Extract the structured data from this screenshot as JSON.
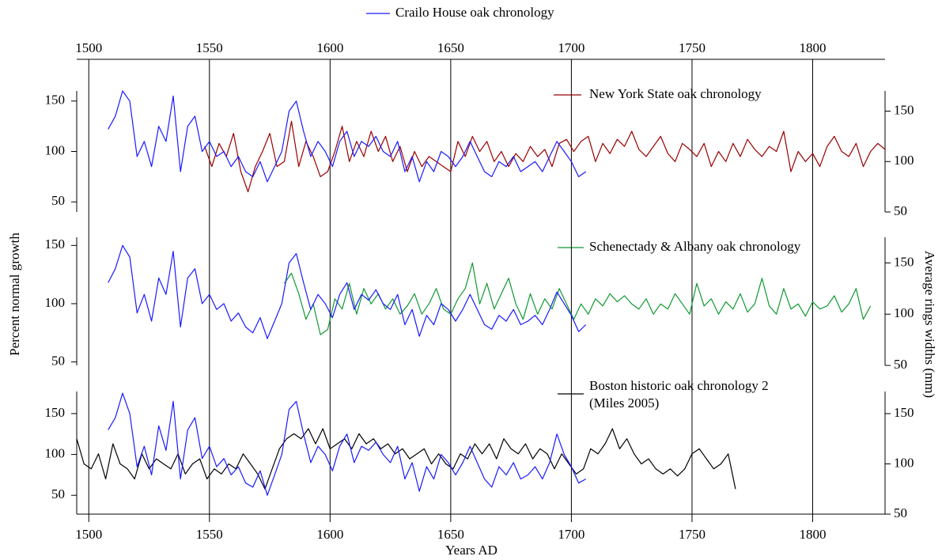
{
  "chart_data": [
    {
      "type": "line",
      "xlim": [
        1495,
        1830
      ],
      "xticks": [
        1500,
        1550,
        1600,
        1650,
        1700,
        1750,
        1800
      ],
      "ylim": [
        40,
        160
      ],
      "yticks": [
        50,
        100,
        150
      ],
      "y2lim": [
        50,
        170
      ],
      "y2ticks": [
        50,
        100,
        150
      ],
      "series": [
        {
          "name": "Crailo House oak chronology",
          "color": "#1a1aff",
          "x": [
            1508,
            1511,
            1514,
            1517,
            1520,
            1523,
            1526,
            1529,
            1532,
            1535,
            1538,
            1541,
            1544,
            1547,
            1550,
            1553,
            1556,
            1559,
            1562,
            1565,
            1568,
            1571,
            1574,
            1577,
            1580,
            1583,
            1586,
            1589,
            1592,
            1595,
            1598,
            1601,
            1604,
            1607,
            1610,
            1613,
            1616,
            1619,
            1622,
            1625,
            1628,
            1631,
            1634,
            1637,
            1640,
            1643,
            1646,
            1649,
            1652,
            1655,
            1658,
            1661,
            1664,
            1667,
            1670,
            1673,
            1676,
            1679,
            1682,
            1685,
            1688,
            1691,
            1694,
            1697,
            1700,
            1703,
            1706
          ],
          "values": [
            122,
            135,
            160,
            150,
            95,
            110,
            85,
            125,
            110,
            155,
            80,
            125,
            135,
            100,
            110,
            95,
            100,
            85,
            95,
            80,
            75,
            90,
            70,
            85,
            100,
            140,
            150,
            120,
            95,
            110,
            100,
            85,
            110,
            120,
            95,
            110,
            105,
            115,
            100,
            95,
            110,
            80,
            95,
            70,
            90,
            80,
            100,
            95,
            85,
            95,
            110,
            95,
            80,
            75,
            90,
            85,
            95,
            80,
            85,
            90,
            80,
            95,
            110,
            100,
            90,
            75,
            80
          ]
        },
        {
          "name": "New York State oak chronology",
          "color": "#990000",
          "axis": "y2",
          "x": [
            1548,
            1551,
            1554,
            1557,
            1560,
            1563,
            1566,
            1569,
            1572,
            1575,
            1578,
            1581,
            1584,
            1587,
            1590,
            1593,
            1596,
            1599,
            1602,
            1605,
            1608,
            1611,
            1614,
            1617,
            1620,
            1623,
            1626,
            1629,
            1632,
            1635,
            1638,
            1641,
            1644,
            1647,
            1650,
            1653,
            1656,
            1659,
            1662,
            1665,
            1668,
            1671,
            1674,
            1677,
            1680,
            1683,
            1686,
            1689,
            1692,
            1695,
            1698,
            1701,
            1704,
            1707,
            1710,
            1713,
            1716,
            1719,
            1722,
            1725,
            1728,
            1731,
            1734,
            1737,
            1740,
            1743,
            1746,
            1749,
            1752,
            1755,
            1758,
            1761,
            1764,
            1767,
            1770,
            1773,
            1776,
            1779,
            1782,
            1785,
            1788,
            1791,
            1794,
            1797,
            1800,
            1803,
            1806,
            1809,
            1812,
            1815,
            1818,
            1821,
            1824,
            1827,
            1830
          ],
          "values": [
            115,
            95,
            118,
            105,
            128,
            90,
            70,
            95,
            110,
            128,
            95,
            100,
            140,
            95,
            120,
            105,
            85,
            90,
            110,
            135,
            100,
            120,
            105,
            130,
            110,
            125,
            100,
            115,
            90,
            110,
            95,
            105,
            100,
            95,
            90,
            120,
            105,
            125,
            110,
            120,
            100,
            110,
            95,
            108,
            100,
            115,
            105,
            112,
            95,
            118,
            122,
            110,
            120,
            125,
            100,
            118,
            108,
            122,
            115,
            130,
            112,
            105,
            115,
            125,
            108,
            100,
            118,
            112,
            105,
            118,
            95,
            110,
            100,
            118,
            105,
            122,
            112,
            105,
            115,
            110,
            130,
            90,
            110,
            100,
            108,
            95,
            115,
            125,
            110,
            105,
            118,
            95,
            110,
            118,
            112
          ]
        }
      ]
    },
    {
      "type": "line",
      "xlim": [
        1495,
        1830
      ],
      "xticks": [
        1500,
        1550,
        1600,
        1650,
        1700,
        1750,
        1800
      ],
      "ylim": [
        47,
        157
      ],
      "yticks": [
        50,
        100,
        150
      ],
      "y2lim": [
        50,
        175
      ],
      "y2ticks": [
        50,
        100,
        150
      ],
      "ylabel": "Percent normal growth",
      "y2label": "Average rings widths (mm)",
      "series": [
        {
          "color": "#1a1aff",
          "x": [
            1508,
            1511,
            1514,
            1517,
            1520,
            1523,
            1526,
            1529,
            1532,
            1535,
            1538,
            1541,
            1544,
            1547,
            1550,
            1553,
            1556,
            1559,
            1562,
            1565,
            1568,
            1571,
            1574,
            1577,
            1580,
            1583,
            1586,
            1589,
            1592,
            1595,
            1598,
            1601,
            1604,
            1607,
            1610,
            1613,
            1616,
            1619,
            1622,
            1625,
            1628,
            1631,
            1634,
            1637,
            1640,
            1643,
            1646,
            1649,
            1652,
            1655,
            1658,
            1661,
            1664,
            1667,
            1670,
            1673,
            1676,
            1679,
            1682,
            1685,
            1688,
            1691,
            1694,
            1697,
            1700,
            1703,
            1706
          ],
          "values": [
            118,
            130,
            150,
            140,
            92,
            108,
            85,
            122,
            108,
            145,
            80,
            122,
            130,
            100,
            108,
            95,
            100,
            85,
            92,
            80,
            75,
            88,
            70,
            85,
            100,
            135,
            143,
            118,
            95,
            108,
            100,
            88,
            108,
            118,
            95,
            108,
            103,
            112,
            100,
            95,
            108,
            82,
            95,
            72,
            90,
            82,
            100,
            95,
            85,
            95,
            108,
            95,
            82,
            78,
            90,
            85,
            95,
            82,
            85,
            90,
            82,
            95,
            110,
            100,
            90,
            76,
            82
          ]
        },
        {
          "name": "Schenectady & Albany oak chronology",
          "color": "#119933",
          "axis": "y2",
          "x": [
            1581,
            1584,
            1587,
            1590,
            1593,
            1596,
            1599,
            1602,
            1605,
            1608,
            1611,
            1614,
            1617,
            1620,
            1623,
            1626,
            1629,
            1632,
            1635,
            1638,
            1641,
            1644,
            1647,
            1650,
            1653,
            1656,
            1659,
            1662,
            1665,
            1668,
            1671,
            1674,
            1677,
            1680,
            1683,
            1686,
            1689,
            1692,
            1695,
            1698,
            1701,
            1704,
            1707,
            1710,
            1713,
            1716,
            1719,
            1722,
            1725,
            1728,
            1731,
            1734,
            1737,
            1740,
            1743,
            1746,
            1749,
            1752,
            1755,
            1758,
            1761,
            1764,
            1767,
            1770,
            1773,
            1776,
            1779,
            1782,
            1785,
            1788,
            1791,
            1794,
            1797,
            1800,
            1803,
            1806,
            1809,
            1812,
            1815,
            1818,
            1821,
            1824
          ],
          "values": [
            130,
            140,
            120,
            95,
            110,
            80,
            85,
            115,
            105,
            130,
            100,
            125,
            110,
            120,
            105,
            115,
            100,
            108,
            120,
            100,
            110,
            125,
            105,
            100,
            115,
            125,
            150,
            110,
            130,
            105,
            120,
            135,
            110,
            95,
            120,
            100,
            115,
            105,
            125,
            110,
            95,
            110,
            100,
            115,
            108,
            120,
            112,
            118,
            110,
            105,
            115,
            100,
            110,
            105,
            120,
            110,
            100,
            130,
            108,
            115,
            100,
            112,
            105,
            120,
            102,
            110,
            135,
            108,
            100,
            125,
            105,
            110,
            98,
            112,
            105,
            108,
            118,
            102,
            110,
            125,
            95,
            108
          ]
        }
      ]
    },
    {
      "type": "line",
      "xlim": [
        1495,
        1830
      ],
      "xticks": [
        1500,
        1550,
        1600,
        1650,
        1700,
        1750,
        1800
      ],
      "ylim": [
        27,
        177
      ],
      "yticks": [
        50,
        100,
        150
      ],
      "y2lim": [
        50,
        172
      ],
      "y2ticks": [
        50,
        100,
        150
      ],
      "xlabel": "Years AD",
      "series": [
        {
          "color": "#1a1aff",
          "x": [
            1508,
            1511,
            1514,
            1517,
            1520,
            1523,
            1526,
            1529,
            1532,
            1535,
            1538,
            1541,
            1544,
            1547,
            1550,
            1553,
            1556,
            1559,
            1562,
            1565,
            1568,
            1571,
            1574,
            1577,
            1580,
            1583,
            1586,
            1589,
            1592,
            1595,
            1598,
            1601,
            1604,
            1607,
            1610,
            1613,
            1616,
            1619,
            1622,
            1625,
            1628,
            1631,
            1634,
            1637,
            1640,
            1643,
            1646,
            1649,
            1652,
            1655,
            1658,
            1661,
            1664,
            1667,
            1670,
            1673,
            1676,
            1679,
            1682,
            1685,
            1688,
            1691,
            1694,
            1697,
            1700,
            1703,
            1706
          ],
          "values": [
            130,
            145,
            175,
            150,
            85,
            110,
            75,
            135,
            105,
            165,
            70,
            130,
            145,
            95,
            110,
            85,
            95,
            75,
            85,
            65,
            60,
            80,
            50,
            75,
            100,
            155,
            165,
            125,
            90,
            110,
            100,
            80,
            110,
            125,
            90,
            110,
            105,
            115,
            100,
            90,
            110,
            70,
            90,
            55,
            85,
            70,
            100,
            90,
            75,
            90,
            110,
            90,
            70,
            60,
            85,
            75,
            90,
            70,
            75,
            85,
            70,
            90,
            125,
            100,
            85,
            65,
            70
          ]
        },
        {
          "name": "Boston historic oak chronology 2",
          "annotation": "(Miles 2005)",
          "color": "#000000",
          "axis": "y2",
          "x": [
            1495,
            1498,
            1501,
            1504,
            1507,
            1510,
            1513,
            1516,
            1519,
            1522,
            1525,
            1528,
            1531,
            1534,
            1537,
            1540,
            1543,
            1546,
            1549,
            1552,
            1555,
            1558,
            1561,
            1564,
            1567,
            1570,
            1573,
            1576,
            1579,
            1582,
            1585,
            1588,
            1591,
            1594,
            1597,
            1600,
            1603,
            1606,
            1609,
            1612,
            1615,
            1618,
            1621,
            1624,
            1627,
            1630,
            1633,
            1636,
            1639,
            1642,
            1645,
            1648,
            1651,
            1654,
            1657,
            1660,
            1663,
            1666,
            1669,
            1672,
            1675,
            1678,
            1681,
            1684,
            1687,
            1690,
            1693,
            1696,
            1699,
            1702,
            1705,
            1708,
            1711,
            1714,
            1717,
            1720,
            1723,
            1726,
            1729,
            1732,
            1735,
            1738,
            1741,
            1744,
            1747,
            1750,
            1753,
            1756,
            1759,
            1762,
            1765,
            1768
          ],
          "values": [
            125,
            100,
            95,
            110,
            85,
            120,
            100,
            95,
            85,
            110,
            95,
            105,
            100,
            95,
            110,
            90,
            100,
            105,
            85,
            95,
            90,
            100,
            95,
            110,
            100,
            90,
            75,
            95,
            115,
            125,
            130,
            125,
            135,
            120,
            135,
            115,
            120,
            125,
            115,
            130,
            120,
            125,
            115,
            120,
            110,
            115,
            105,
            110,
            115,
            100,
            110,
            100,
            95,
            110,
            105,
            120,
            110,
            120,
            105,
            125,
            115,
            110,
            120,
            105,
            115,
            110,
            95,
            110,
            100,
            90,
            95,
            115,
            110,
            120,
            135,
            115,
            125,
            110,
            100,
            105,
            95,
            90,
            95,
            88,
            95,
            110,
            115,
            105,
            95,
            100,
            110,
            75
          ]
        }
      ]
    }
  ]
}
